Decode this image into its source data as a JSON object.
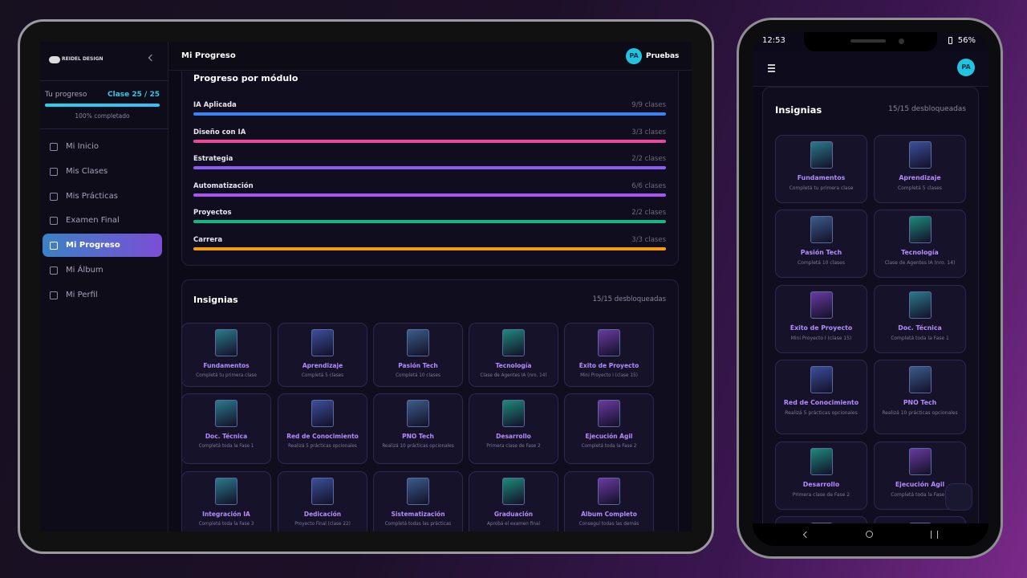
{
  "tablet": {
    "brand": "REIDEL DESIGN",
    "sidebar": {
      "progress_label": "Tu progreso",
      "progress_value": "Clase 25 / 25",
      "progress_note": "100% completado",
      "nav": [
        "Mi Inicio",
        "Mis Clases",
        "Mis Prácticas",
        "Examen Final",
        "Mi Progreso",
        "Mi Álbum",
        "Mi Perfil"
      ],
      "active": 4
    },
    "header": {
      "title": "Mi Progreso",
      "avatar": "PA",
      "user": "Pruebas"
    },
    "modules": {
      "title": "Progreso por módulo",
      "items": [
        {
          "name": "IA Aplicada",
          "count": "9/9 clases",
          "color": "#3b82f6"
        },
        {
          "name": "Diseño con IA",
          "count": "3/3 clases",
          "color": "#ec4899"
        },
        {
          "name": "Estrategia",
          "count": "2/2 clases",
          "color": "#8b5cf6"
        },
        {
          "name": "Automatización",
          "count": "6/6 clases",
          "color": "#a855f7"
        },
        {
          "name": "Proyectos",
          "count": "2/2 clases",
          "color": "#10b981"
        },
        {
          "name": "Carrera",
          "count": "3/3 clases",
          "color": "#f59e0b"
        }
      ]
    },
    "badges": {
      "title": "Insignias",
      "count": "15/15 desbloqueadas",
      "items": [
        {
          "name": "Fundamentos",
          "desc": "Completá tu primera clase"
        },
        {
          "name": "Aprendizaje",
          "desc": "Completá 5 clases"
        },
        {
          "name": "Pasión Tech",
          "desc": "Completá 10 clases"
        },
        {
          "name": "Tecnología",
          "desc": "Clase de Agentes IA (nro. 14)"
        },
        {
          "name": "Éxito de Proyecto",
          "desc": "Mini Proyecto I (clase 15)"
        },
        {
          "name": "Doc. Técnica",
          "desc": "Completá toda la Fase 1"
        },
        {
          "name": "Red de Conocimiento",
          "desc": "Realizá 5 prácticas opcionales"
        },
        {
          "name": "PNO Tech",
          "desc": "Realizá 10 prácticas opcionales"
        },
        {
          "name": "Desarrollo",
          "desc": "Primera clase de Fase 2"
        },
        {
          "name": "Ejecución Ágil",
          "desc": "Completá toda la Fase 2"
        },
        {
          "name": "Integración IA",
          "desc": "Completá toda la Fase 3"
        },
        {
          "name": "Dedicación",
          "desc": "Proyecto Final (clase 22)"
        },
        {
          "name": "Sistematización",
          "desc": "Completá todas las prácticas"
        },
        {
          "name": "Graduación",
          "desc": "Aprobá el examen final"
        },
        {
          "name": "Álbum Completo",
          "desc": "Conseguí todas las demás"
        }
      ]
    }
  },
  "phone": {
    "time": "12:53",
    "battery": "56%",
    "avatar": "PA"
  }
}
